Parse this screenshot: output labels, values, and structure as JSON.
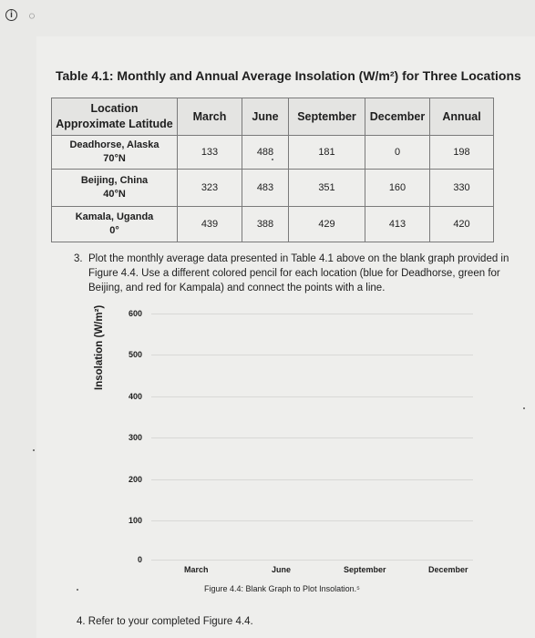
{
  "title": "Table 4.1: Monthly and Annual Average Insolation (W/m²) for Three Locations",
  "table": {
    "headers": {
      "location_line1": "Location",
      "location_line2": "Approximate Latitude",
      "cols": [
        "March",
        "June",
        "September",
        "December",
        "Annual"
      ]
    },
    "rows": [
      {
        "name": "Deadhorse, Alaska",
        "lat": "70°N",
        "values": [
          "133",
          "488",
          "181",
          "0",
          "198"
        ]
      },
      {
        "name": "Beijing, China",
        "lat": "40°N",
        "values": [
          "323",
          "483",
          "351",
          "160",
          "330"
        ]
      },
      {
        "name": "Kamala, Uganda",
        "lat": "0°",
        "values": [
          "439",
          "388",
          "429",
          "413",
          "420"
        ]
      }
    ]
  },
  "question3": {
    "number": "3.",
    "text": "Plot the monthly average data presented in Table 4.1 above on the blank graph provided in Figure 4.4. Use a different colored pencil for each location (blue for Deadhorse, green for Beijing, and red for Kampala) and connect the points with a line."
  },
  "graph": {
    "ylabel": "Insolation (W/m²)",
    "yticks": [
      "600",
      "500",
      "400",
      "300",
      "200",
      "100",
      "0"
    ],
    "xcategories": [
      "March",
      "June",
      "September",
      "December"
    ],
    "caption": "Figure 4.4: Blank Graph to Plot Insolation.⁵"
  },
  "question4": {
    "text": "4.  Refer to your completed Figure 4.4."
  }
}
